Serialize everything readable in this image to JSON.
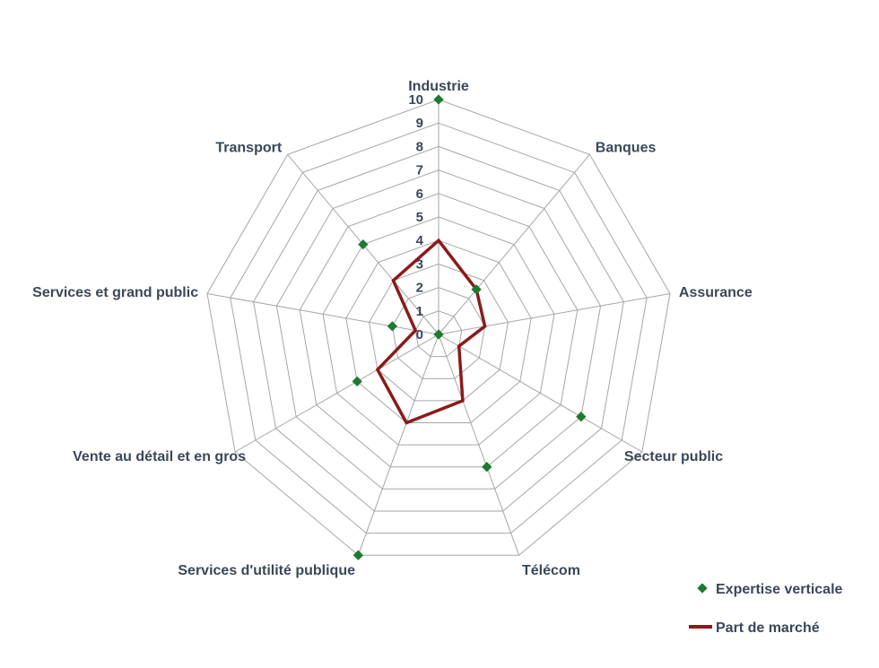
{
  "chart_data": {
    "type": "radar",
    "categories": [
      "Industrie",
      "Banques",
      "Assurance",
      "Secteur public",
      "Télécom",
      "Services d'utilité publique",
      "Vente au détail et en gros",
      "Services et grand public",
      "Transport"
    ],
    "rlim": [
      0,
      10
    ],
    "ticks": [
      "0",
      "1",
      "2",
      "3",
      "4",
      "5",
      "6",
      "7",
      "8",
      "9",
      "10"
    ],
    "series": [
      {
        "name": "Expertise verticale",
        "style": "markers",
        "color": "#1e7a2e",
        "values": [
          10,
          2.5,
          0,
          7,
          6,
          10,
          4,
          2,
          5
        ]
      },
      {
        "name": "Part de marché",
        "style": "line",
        "color": "#8b1a1a",
        "values": [
          4,
          2.5,
          2,
          1,
          3,
          4,
          3,
          1,
          3
        ]
      }
    ],
    "grid": true,
    "legend_position": "bottom-right"
  }
}
